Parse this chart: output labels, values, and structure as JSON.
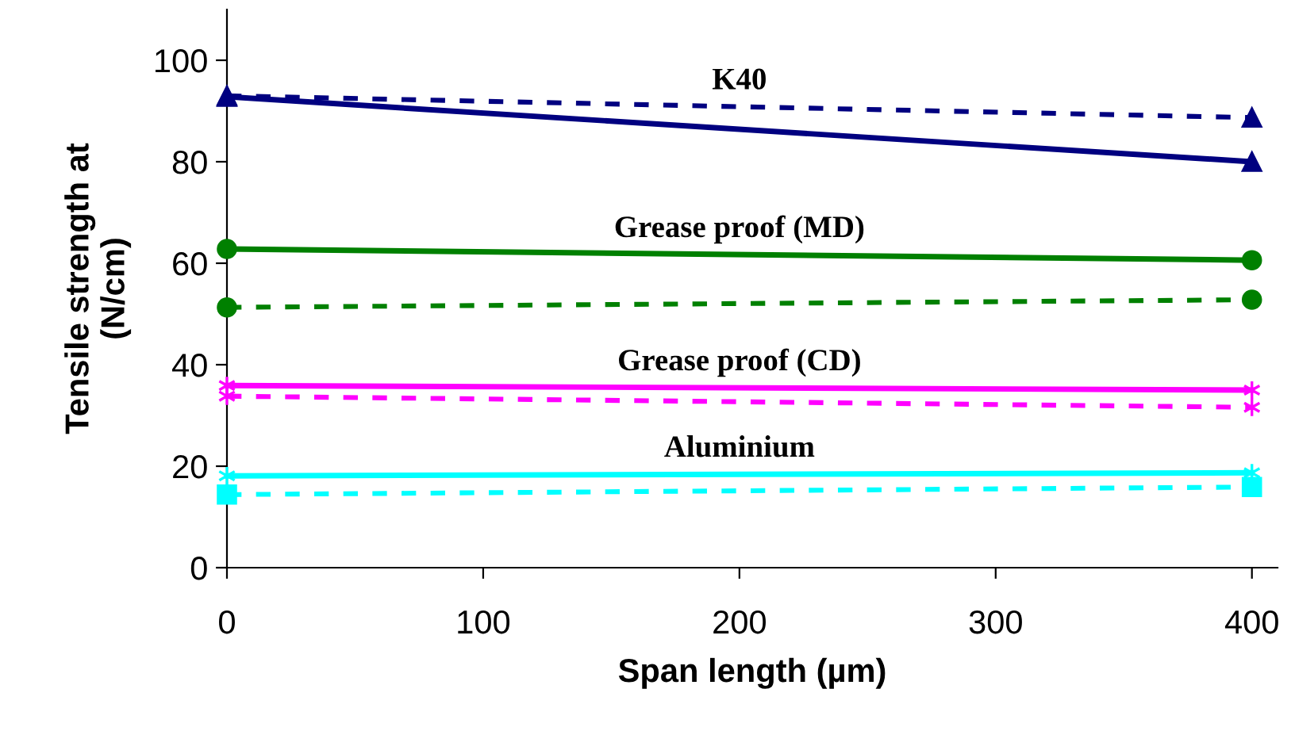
{
  "chart_data": {
    "type": "line",
    "xlabel": "Span length (µm)",
    "ylabel": "Tensile strength at\n(N/cm)",
    "x": [
      0,
      400
    ],
    "xlim": [
      0,
      410
    ],
    "xticks": [
      0,
      100,
      200,
      300,
      400
    ],
    "ylim": [
      0,
      110
    ],
    "yticks": [
      0,
      20,
      40,
      60,
      80,
      100
    ],
    "grid": false,
    "legend": false,
    "series": [
      {
        "color": "#000080",
        "values": [
          92.8,
          80
        ],
        "marker": "triangle",
        "line_style": "solid"
      },
      {
        "name": "K40",
        "color": "#000080",
        "values": [
          93,
          88.7
        ],
        "marker": "triangle",
        "line_style": "dashed"
      },
      {
        "name": "Grease proof (MD)",
        "color": "#008000",
        "values": [
          62.8,
          60.6
        ],
        "marker": "circle",
        "line_style": "solid"
      },
      {
        "color": "#008000",
        "values": [
          51.3,
          52.8
        ],
        "marker": "circle",
        "line_style": "dashed"
      },
      {
        "name": "Grease proof (CD)",
        "color": "#ff00ff",
        "values": [
          35.9,
          35
        ],
        "marker": "cross",
        "line_style": "solid"
      },
      {
        "color": "#ff00ff",
        "values": [
          33.8,
          31.6
        ],
        "marker": "cross",
        "line_style": "dashed"
      },
      {
        "name": "Aluminium",
        "color": "#00ffff",
        "values": [
          18.1,
          18.7
        ],
        "marker": "cross",
        "line_style": "solid"
      },
      {
        "color": "#00ffff",
        "values": [
          14.4,
          15.9
        ],
        "marker": "square",
        "line_style": "dashed"
      }
    ]
  }
}
